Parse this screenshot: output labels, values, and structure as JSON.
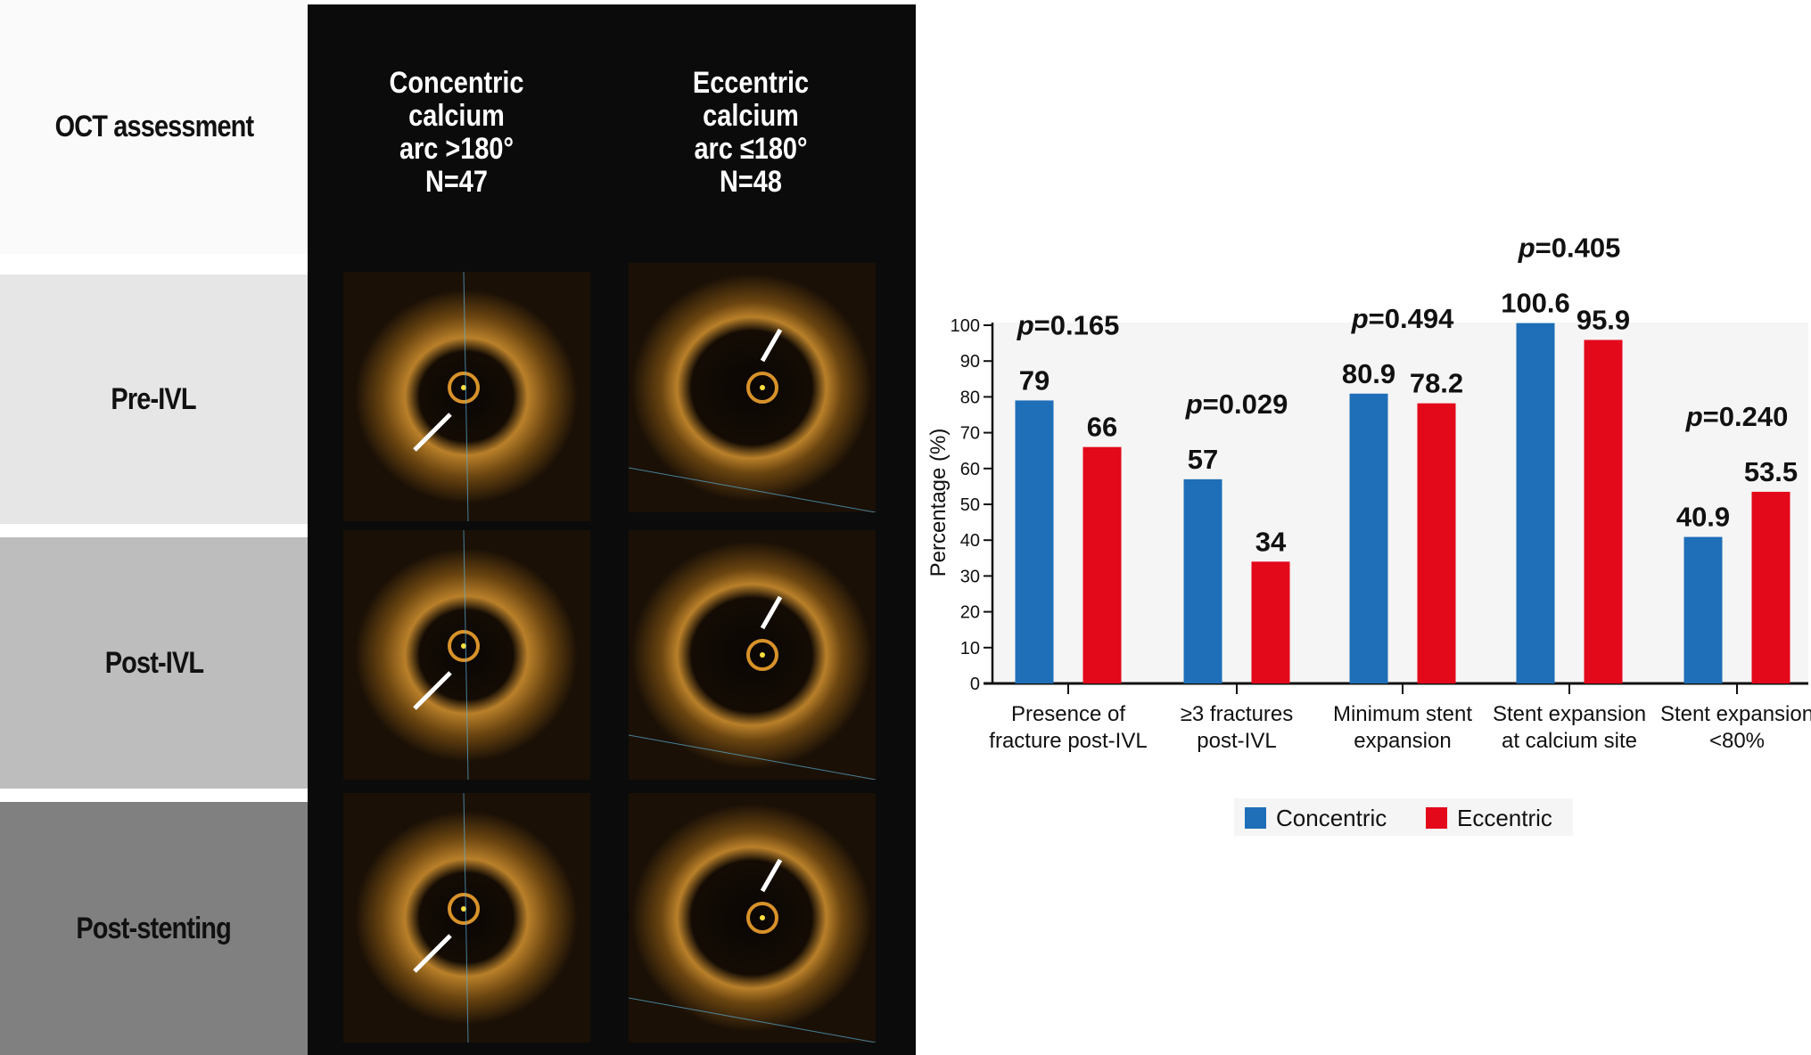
{
  "rows": [
    {
      "label": "OCT assessment",
      "bg": "#fafafa"
    },
    {
      "label": "Pre-IVL",
      "bg": "#e6e6e6"
    },
    {
      "label": "Post-IVL",
      "bg": "#bdbdbd"
    },
    {
      "label": "Post-stenting",
      "bg": "#808080"
    }
  ],
  "columns": [
    {
      "lines": [
        "Concentric",
        "calcium",
        "arc >180°",
        "N=47"
      ]
    },
    {
      "lines": [
        "Eccentric",
        "calcium",
        "arc ≤180°",
        "N=48"
      ]
    }
  ],
  "chart_data": {
    "type": "bar",
    "categories": [
      [
        "Presence of",
        "fracture post-IVL"
      ],
      [
        "≥3 fractures",
        "post-IVL"
      ],
      [
        "Minimum stent",
        "expansion"
      ],
      [
        "Stent expansion",
        "at calcium site"
      ],
      [
        "Stent expansion",
        "<80%"
      ]
    ],
    "series": [
      {
        "name": "Concentric",
        "color": "#1f6eb8",
        "values": [
          79,
          57,
          80.9,
          100.6,
          40.9
        ],
        "labels": [
          "79",
          "57",
          "80.9",
          "100.6",
          "40.9"
        ]
      },
      {
        "name": "Eccentric",
        "color": "#e3081a",
        "values": [
          66,
          34,
          78.2,
          95.9,
          53.5
        ],
        "labels": [
          "66",
          "34",
          "78.2",
          "95.9",
          "53.5"
        ]
      }
    ],
    "p_values": [
      "0.165",
      "0.029",
      "0.494",
      "0.405",
      "0.240"
    ],
    "p_prefix": "p",
    "ylabel": "Percentage (%)",
    "ylim": [
      0,
      100
    ],
    "yticks": [
      0,
      10,
      20,
      30,
      40,
      50,
      60,
      70,
      80,
      90,
      100
    ],
    "legend": "bottom",
    "plot_bg": "#f5f5f5"
  }
}
